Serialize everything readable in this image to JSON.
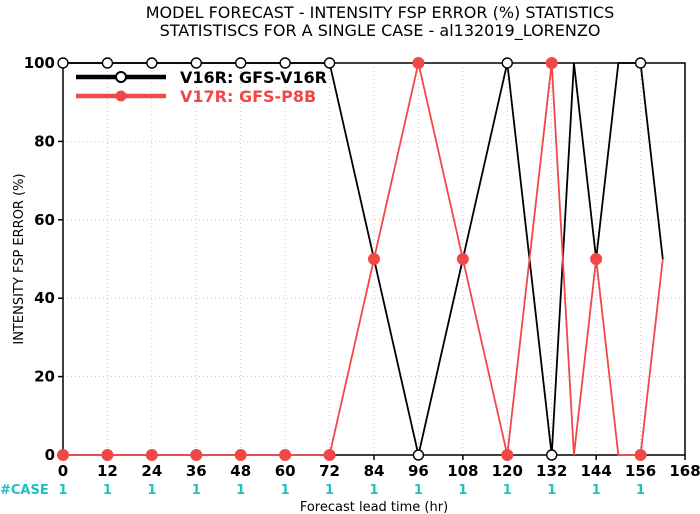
{
  "chart_data": {
    "type": "line",
    "title_lines": [
      "MODEL FORECAST - INTENSITY FSP ERROR (%) STATISTICS",
      "STATISTISCS FOR A SINGLE CASE - al132019_LORENZO"
    ],
    "xlabel": "Forecast lead time (hr)",
    "ylabel": "INTENSITY FSP ERROR (%)",
    "xlim": [
      0,
      168
    ],
    "ylim": [
      0,
      100
    ],
    "x_ticks": [
      0,
      12,
      24,
      36,
      48,
      60,
      72,
      84,
      96,
      108,
      120,
      132,
      144,
      156,
      168
    ],
    "y_ticks": [
      0,
      20,
      40,
      60,
      80,
      100
    ],
    "grid": true,
    "legend_position": "top-left",
    "series": [
      {
        "name": "V16R: GFS-V16R",
        "color": "#000000",
        "marker": "open-circle",
        "x": [
          0,
          12,
          24,
          36,
          48,
          60,
          72,
          84,
          96,
          108,
          120,
          132,
          138,
          144,
          150,
          156,
          162
        ],
        "y": [
          100,
          100,
          100,
          100,
          100,
          100,
          100,
          50,
          0,
          50,
          100,
          0,
          100,
          50,
          100,
          100,
          50
        ],
        "marker_x": [
          0,
          12,
          24,
          36,
          48,
          60,
          72,
          84,
          96,
          108,
          120,
          132,
          144,
          156
        ]
      },
      {
        "name": "V17R: GFS-P8B",
        "color": "#f04848",
        "marker": "filled-circle",
        "x": [
          0,
          12,
          24,
          36,
          48,
          60,
          72,
          84,
          96,
          108,
          120,
          132,
          138,
          144,
          150,
          156,
          162
        ],
        "y": [
          0,
          0,
          0,
          0,
          0,
          0,
          0,
          50,
          100,
          50,
          0,
          100,
          0,
          50,
          0,
          0,
          50
        ],
        "marker_x": [
          0,
          12,
          24,
          36,
          48,
          60,
          72,
          84,
          96,
          108,
          120,
          132,
          144,
          156
        ]
      }
    ],
    "case_label": "#CASE",
    "case_color": "#20c0c0",
    "case_counts": [
      {
        "x": 0,
        "n": "1"
      },
      {
        "x": 12,
        "n": "1"
      },
      {
        "x": 24,
        "n": "1"
      },
      {
        "x": 36,
        "n": "1"
      },
      {
        "x": 48,
        "n": "1"
      },
      {
        "x": 60,
        "n": "1"
      },
      {
        "x": 72,
        "n": "1"
      },
      {
        "x": 84,
        "n": "1"
      },
      {
        "x": 96,
        "n": "1"
      },
      {
        "x": 108,
        "n": "1"
      },
      {
        "x": 120,
        "n": "1"
      },
      {
        "x": 132,
        "n": "1"
      },
      {
        "x": 144,
        "n": "1"
      },
      {
        "x": 156,
        "n": "1"
      }
    ]
  }
}
